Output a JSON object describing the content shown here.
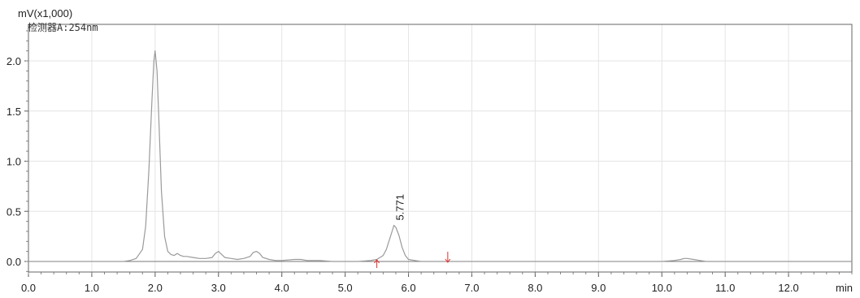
{
  "chart_data": {
    "type": "line",
    "y_unit_label": "mV(x1,000)",
    "detector_label": "检测器A:254nm",
    "x_unit_label": "min",
    "xlim": [
      0.0,
      13.0
    ],
    "ylim": [
      -0.1,
      2.3
    ],
    "x_ticks": [
      "0.0",
      "1.0",
      "2.0",
      "3.0",
      "4.0",
      "5.0",
      "6.0",
      "7.0",
      "8.0",
      "9.0",
      "10.0",
      "11.0",
      "12.0"
    ],
    "y_ticks": [
      "0.0",
      "0.5",
      "1.0",
      "1.5",
      "2.0"
    ],
    "series": [
      {
        "color": "#9a9a9a",
        "x": [
          0.0,
          1.5,
          1.6,
          1.7,
          1.8,
          1.85,
          1.9,
          1.95,
          1.98,
          2.0,
          2.03,
          2.06,
          2.1,
          2.15,
          2.2,
          2.25,
          2.3,
          2.35,
          2.4,
          2.45,
          2.5,
          2.6,
          2.7,
          2.8,
          2.9,
          2.95,
          3.0,
          3.05,
          3.1,
          3.2,
          3.3,
          3.4,
          3.5,
          3.55,
          3.6,
          3.65,
          3.7,
          3.8,
          3.9,
          4.0,
          4.2,
          4.3,
          4.4,
          4.6,
          4.8,
          5.0,
          5.2,
          5.4,
          5.5,
          5.6,
          5.65,
          5.7,
          5.75,
          5.77,
          5.8,
          5.85,
          5.9,
          5.95,
          6.0,
          6.1,
          6.2,
          6.4,
          6.6,
          7.0,
          8.0,
          9.0,
          10.0,
          10.2,
          10.3,
          10.35,
          10.4,
          10.5,
          10.6,
          10.7,
          11.0,
          12.0,
          13.0
        ],
        "y": [
          0.0,
          0.0,
          0.01,
          0.03,
          0.12,
          0.35,
          0.9,
          1.6,
          2.0,
          2.1,
          1.9,
          1.4,
          0.7,
          0.25,
          0.1,
          0.07,
          0.06,
          0.08,
          0.06,
          0.05,
          0.05,
          0.04,
          0.03,
          0.03,
          0.04,
          0.08,
          0.1,
          0.07,
          0.04,
          0.03,
          0.02,
          0.03,
          0.05,
          0.09,
          0.1,
          0.08,
          0.04,
          0.02,
          0.01,
          0.01,
          0.02,
          0.02,
          0.01,
          0.01,
          0.0,
          0.0,
          0.0,
          0.01,
          0.02,
          0.06,
          0.12,
          0.22,
          0.32,
          0.36,
          0.34,
          0.26,
          0.14,
          0.06,
          0.02,
          0.01,
          0.0,
          0.0,
          0.0,
          0.0,
          0.0,
          0.0,
          0.0,
          0.01,
          0.02,
          0.03,
          0.03,
          0.02,
          0.01,
          0.0,
          0.0,
          0.0,
          0.0
        ]
      }
    ],
    "annotations": [
      {
        "text": "5.771",
        "x": 5.771,
        "y": 0.36
      }
    ],
    "integration_markers": [
      {
        "x": 5.5,
        "direction": "up",
        "color": "#e03030"
      },
      {
        "x": 6.62,
        "direction": "down",
        "color": "#e03030"
      }
    ],
    "grid": true
  }
}
